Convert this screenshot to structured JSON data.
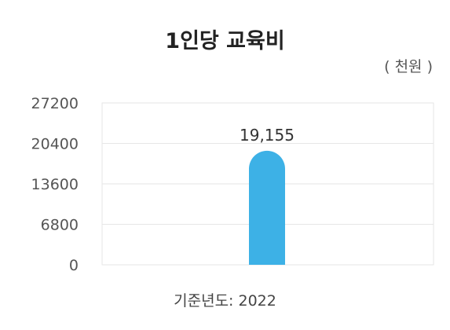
{
  "chart_data": {
    "type": "bar",
    "title": "1인당 교육비",
    "unit_label": "( 천원 )",
    "categories": [
      "2022"
    ],
    "values": [
      19155
    ],
    "value_labels": [
      "19,155"
    ],
    "x_caption": "기준년도: 2022",
    "ylim": [
      0,
      27200
    ],
    "yticks": [
      0,
      6800,
      13600,
      20400,
      27200
    ],
    "grid": true,
    "bar_color": "#3db1e6",
    "grid_color": "#e6e6e6"
  }
}
